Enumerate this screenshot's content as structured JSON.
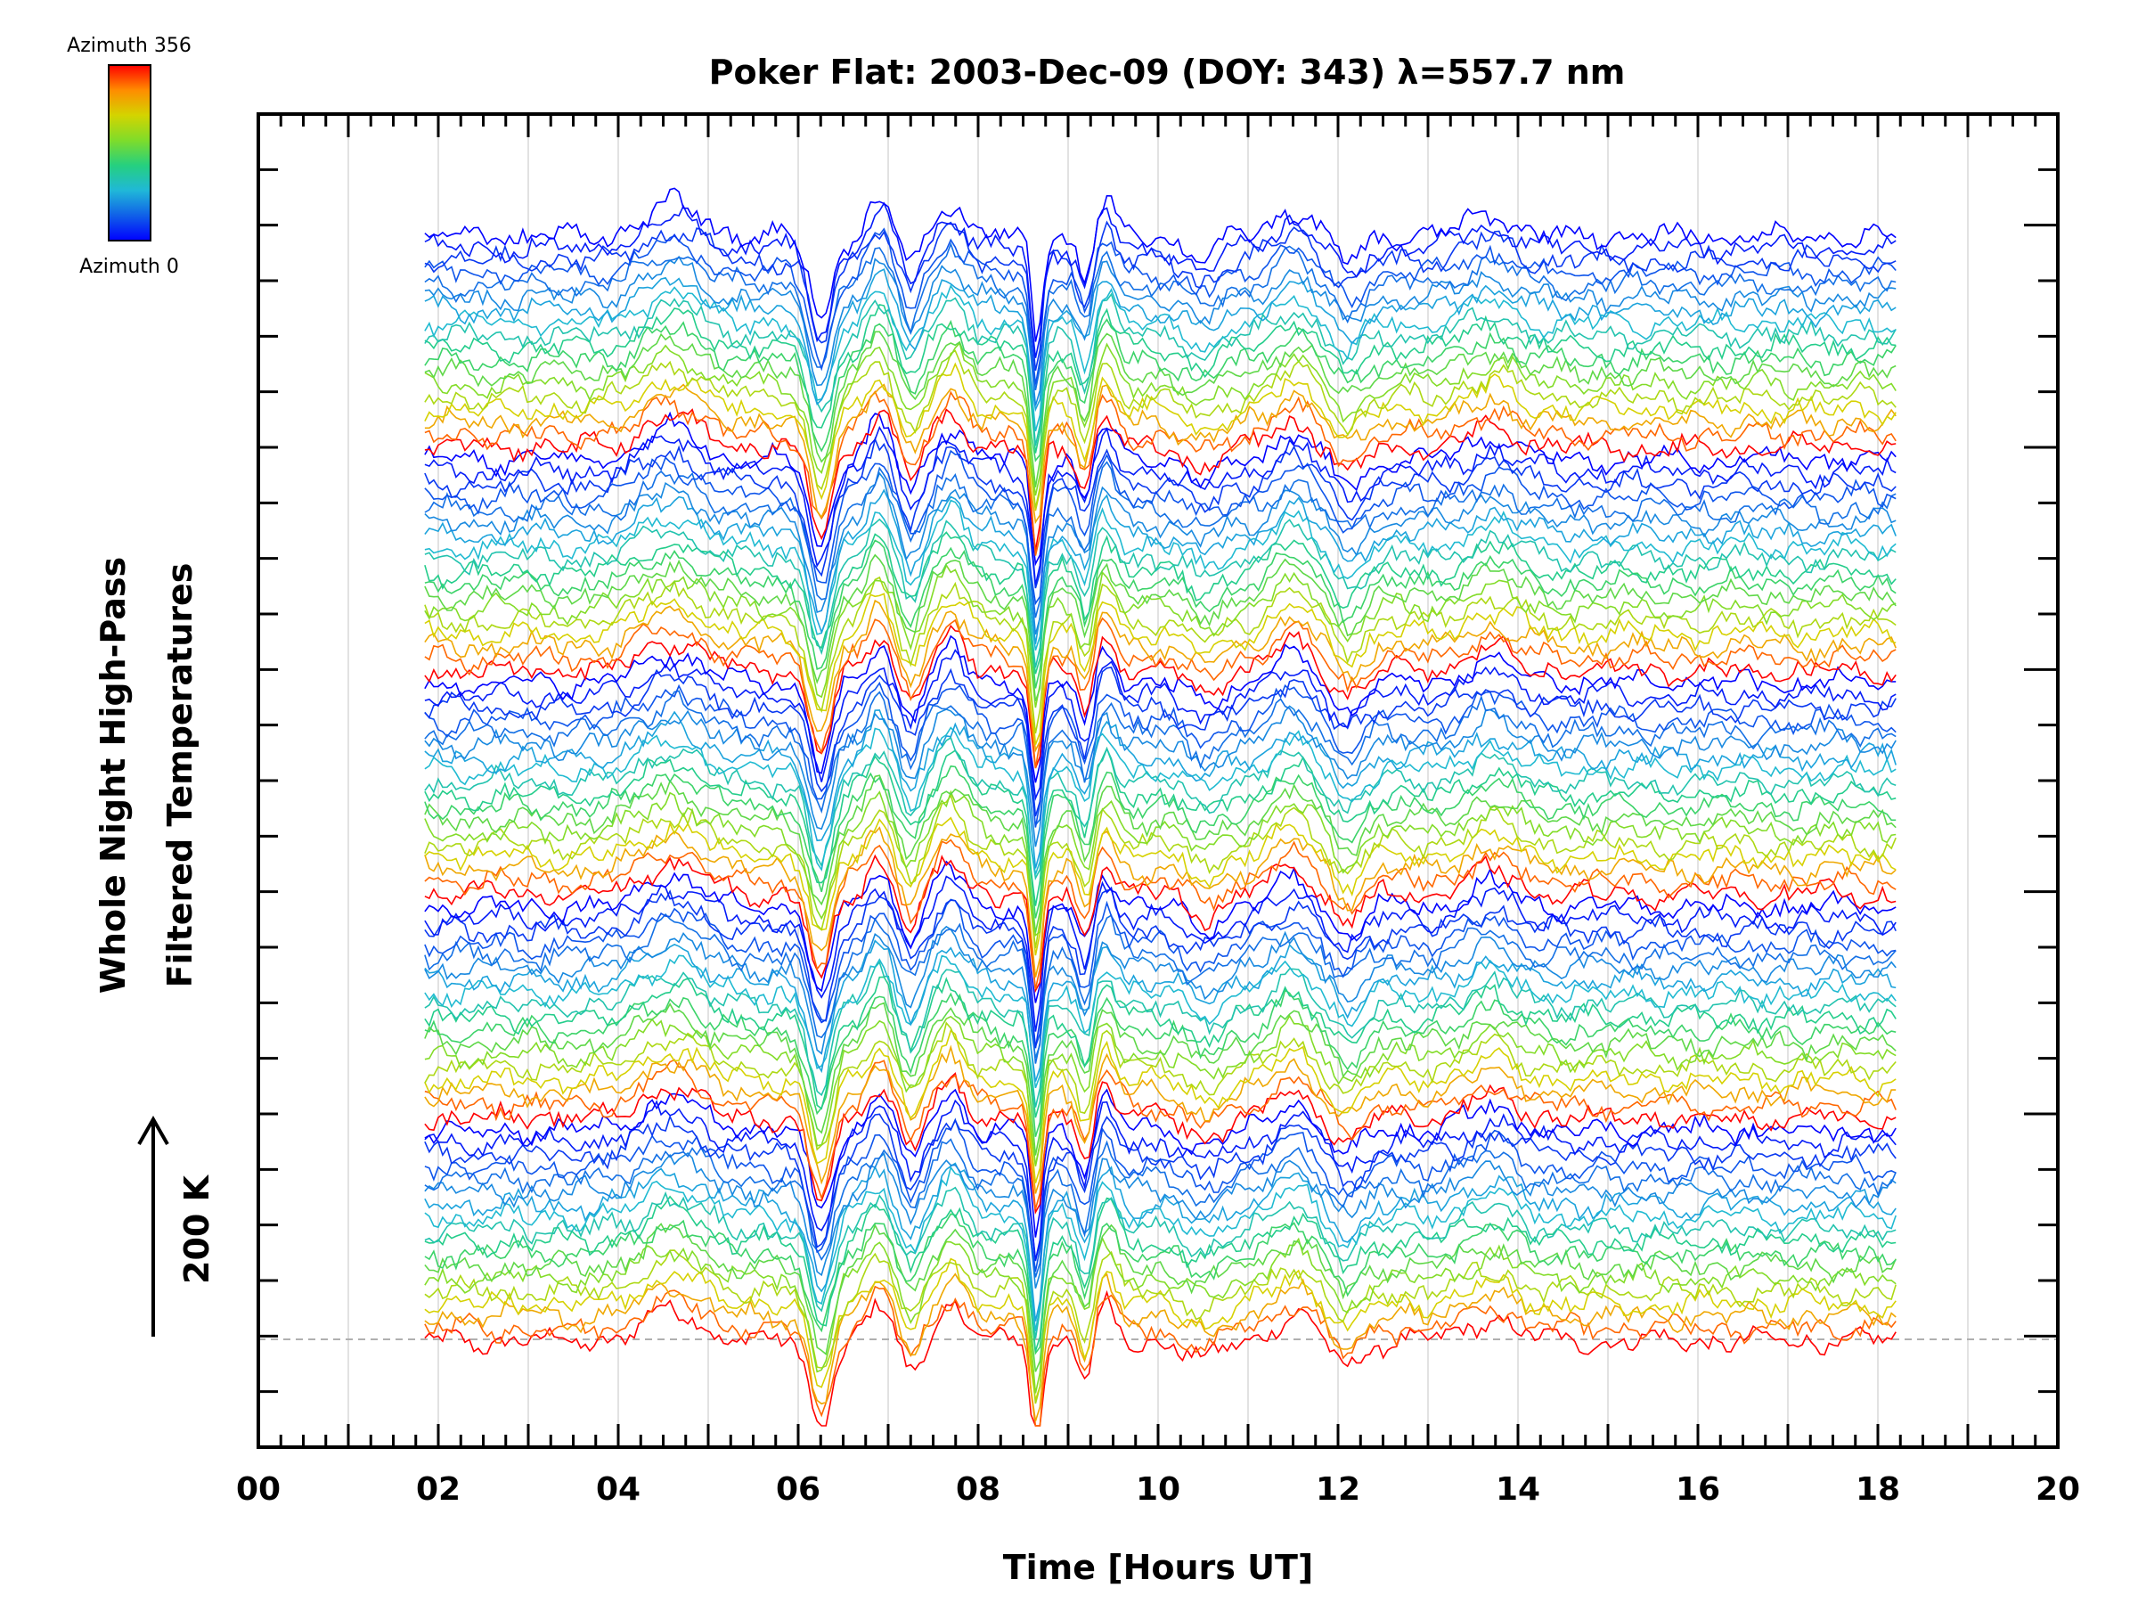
{
  "chart_data": {
    "type": "line",
    "title": "Poker Flat: 2003-Dec-09 (DOY: 343) λ=557.7 nm",
    "xlabel": "Time [Hours UT]",
    "ylabel_line1": "Whole Night High-Pass",
    "ylabel_line2": "Filtered Temperatures",
    "scale_label": "200 K",
    "xlim": [
      0,
      20
    ],
    "xticks": [
      "00",
      "02",
      "04",
      "06",
      "08",
      "10",
      "12",
      "14",
      "16",
      "18",
      "20"
    ],
    "data_time_range": [
      1.85,
      18.2
    ],
    "grid": true,
    "colorbar": {
      "label_top": "Azimuth 356",
      "label_bottom": "Azimuth 0",
      "colors": [
        "#ff0000",
        "#ff8c00",
        "#d4d400",
        "#7fdc2a",
        "#25d07f",
        "#20b8d8",
        "#1060e8",
        "#0000ff"
      ]
    },
    "series_description": "Stacked traces, one per azimuth 0–356°, offset vertically and colored by azimuth; strong common dips near 06.2, 08.6 and 09.2 UT",
    "series_count": 90
  }
}
